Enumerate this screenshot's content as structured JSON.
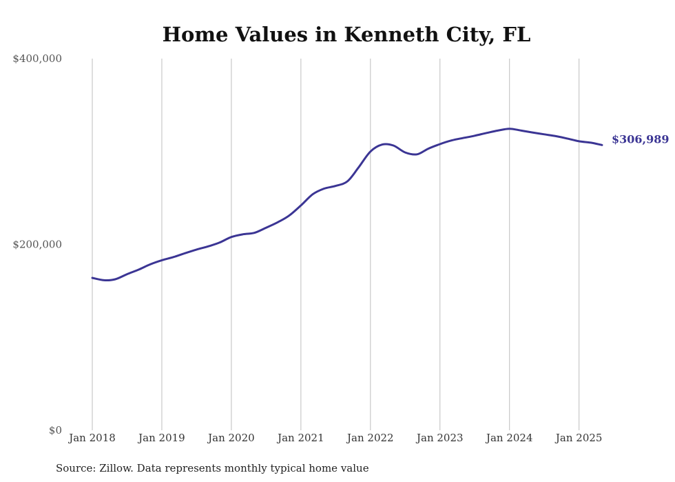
{
  "chart_data": {
    "type": "line",
    "title": "Home Values in Kenneth City, FL",
    "source_note": "Source: Zillow. Data represents monthly typical home value",
    "ylim": [
      0,
      400000
    ],
    "y_ticks": [
      {
        "value": 0,
        "label": "$0"
      },
      {
        "value": 200000,
        "label": "$200,000"
      },
      {
        "value": 400000,
        "label": "$400,000"
      }
    ],
    "x_ticks": [
      {
        "value": 2018,
        "label": "Jan 2018"
      },
      {
        "value": 2019,
        "label": "Jan 2019"
      },
      {
        "value": 2020,
        "label": "Jan 2020"
      },
      {
        "value": 2021,
        "label": "Jan 2021"
      },
      {
        "value": 2022,
        "label": "Jan 2022"
      },
      {
        "value": 2023,
        "label": "Jan 2023"
      },
      {
        "value": 2024,
        "label": "Jan 2024"
      },
      {
        "value": 2025,
        "label": "Jan 2025"
      }
    ],
    "xlim": [
      2018,
      2025.33
    ],
    "grid": "vertical",
    "line_color": "#3b3594",
    "end_label": "$306,989",
    "series": [
      {
        "x": [
          2018.0,
          2018.17,
          2018.33,
          2018.5,
          2018.67,
          2018.83,
          2019.0,
          2019.17,
          2019.33,
          2019.5,
          2019.67,
          2019.83,
          2020.0,
          2020.17,
          2020.33,
          2020.5,
          2020.67,
          2020.83,
          2021.0,
          2021.17,
          2021.33,
          2021.5,
          2021.67,
          2021.83,
          2022.0,
          2022.17,
          2022.33,
          2022.5,
          2022.67,
          2022.83,
          2023.0,
          2023.17,
          2023.33,
          2023.5,
          2023.67,
          2023.83,
          2024.0,
          2024.17,
          2024.33,
          2024.5,
          2024.67,
          2024.83,
          2025.0,
          2025.17,
          2025.33
        ],
        "values": [
          164000,
          161500,
          162500,
          168000,
          173000,
          178500,
          183000,
          186500,
          190500,
          194500,
          198000,
          202000,
          208000,
          211000,
          212500,
          218000,
          224000,
          231000,
          242000,
          254000,
          260000,
          263000,
          268000,
          283000,
          300000,
          307500,
          306500,
          299000,
          297000,
          303000,
          308000,
          312000,
          314500,
          317000,
          320000,
          322500,
          324500,
          322500,
          320500,
          318500,
          316500,
          314000,
          311000,
          309500,
          306989
        ]
      }
    ]
  }
}
